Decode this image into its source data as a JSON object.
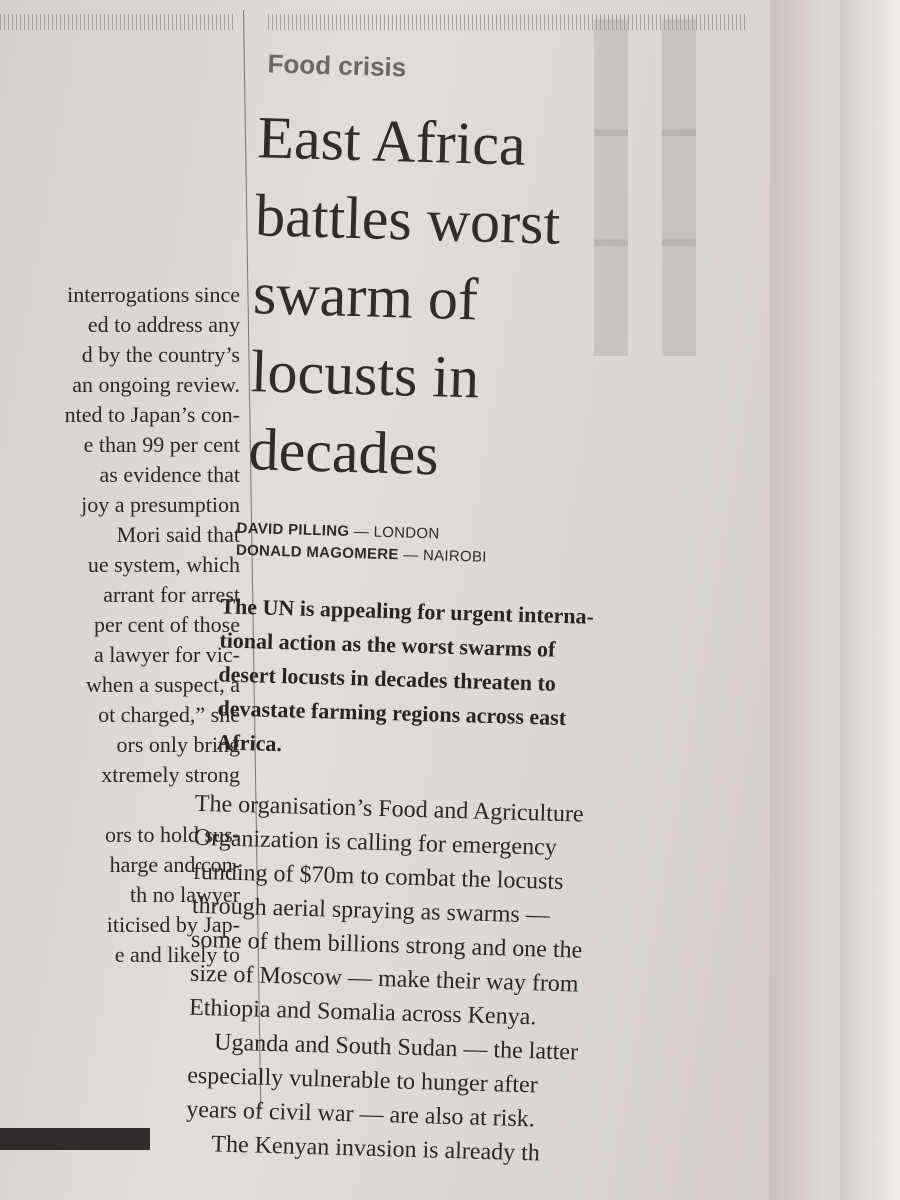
{
  "left_column": {
    "lines": [
      "interrogations since",
      "ed to address any",
      "d by the country’s",
      "an ongoing review.",
      "nted to Japan’s con-",
      "e than 99 per cent",
      "as evidence that",
      "joy a presumption",
      "Mori said that",
      "ue system, which",
      "arrant for arrest",
      "per cent of those",
      "a lawyer for vic-",
      "when a suspect, a",
      "ot charged,” she",
      "ors only bring",
      "xtremely strong"
    ],
    "lines_b": [
      "ors to hold sus-",
      "harge and con-",
      "th no lawyer",
      "iticised by Jap-",
      "e and likely to"
    ]
  },
  "article": {
    "kicker": "Food crisis",
    "headline_lines": [
      "East Africa",
      "battles worst",
      "swarm of",
      "locusts in",
      "decades"
    ],
    "bylines": [
      {
        "name": "DAVID PILLING",
        "place": "— LONDON"
      },
      {
        "name": "DONALD MAGOMERE",
        "place": "— NAIROBI"
      }
    ],
    "standfirst_lines": [
      "The UN is appealing for urgent interna-",
      "tional action as the worst swarms of",
      "desert locusts in decades threaten to",
      "devastate farming regions across east",
      "Africa."
    ],
    "paragraph1_lines": [
      "The organisation’s Food and Agriculture",
      "Organization is calling for emergency",
      "funding of $70m to combat the locusts",
      "through aerial spraying as swarms —",
      "some of them billions strong and one the",
      "size of Moscow — make their way from",
      "Ethiopia and Somalia across Kenya."
    ],
    "paragraph2_lines": [
      "Uganda and South Sudan — the latter",
      "especially vulnerable to hunger after",
      "years of civil war — are also at risk."
    ],
    "paragraph3_lines": [
      "The Kenyan invasion is already th"
    ]
  }
}
